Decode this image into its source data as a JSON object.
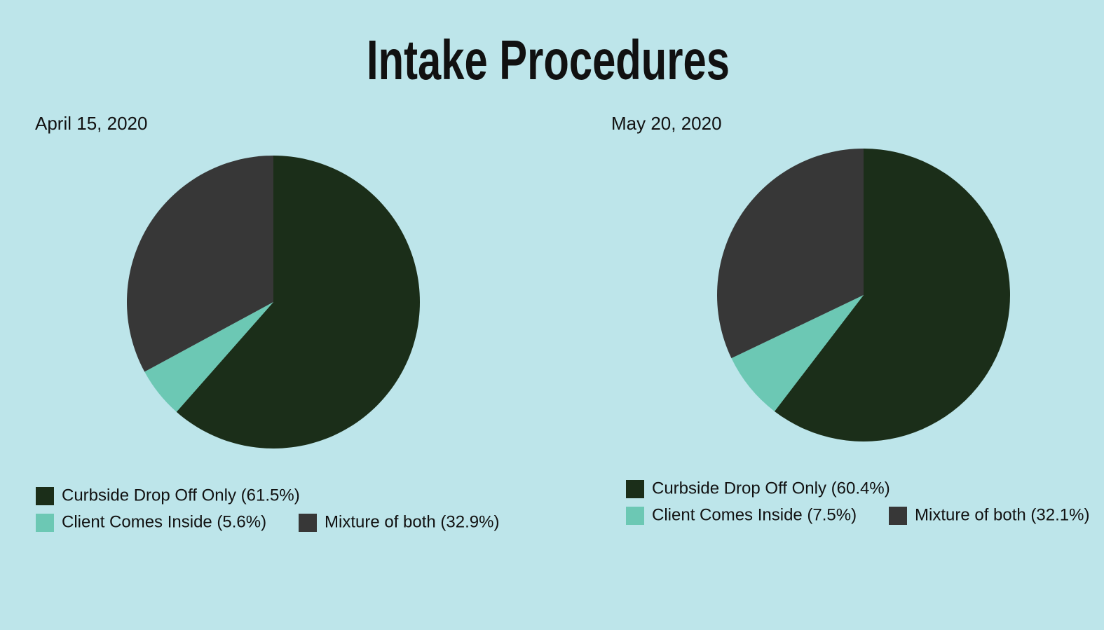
{
  "title": "Intake Procedures",
  "chart_data": [
    {
      "type": "pie",
      "subtitle": "April 15, 2020",
      "categories": [
        "Curbside Drop Off Only (61.5%)",
        "Client Comes Inside (5.6%)",
        "Mixture of both (32.9%)"
      ],
      "values": [
        61.5,
        5.6,
        32.9
      ],
      "colors": [
        "#1b2e19",
        "#6cc8b4",
        "#373737"
      ]
    },
    {
      "type": "pie",
      "subtitle": "May 20, 2020",
      "categories": [
        "Curbside Drop Off Only (60.4%)",
        "Client Comes Inside (7.5%)",
        "Mixture of both (32.1%)"
      ],
      "values": [
        60.4,
        7.5,
        32.1
      ],
      "colors": [
        "#1b2e19",
        "#6cc8b4",
        "#373737"
      ]
    }
  ]
}
